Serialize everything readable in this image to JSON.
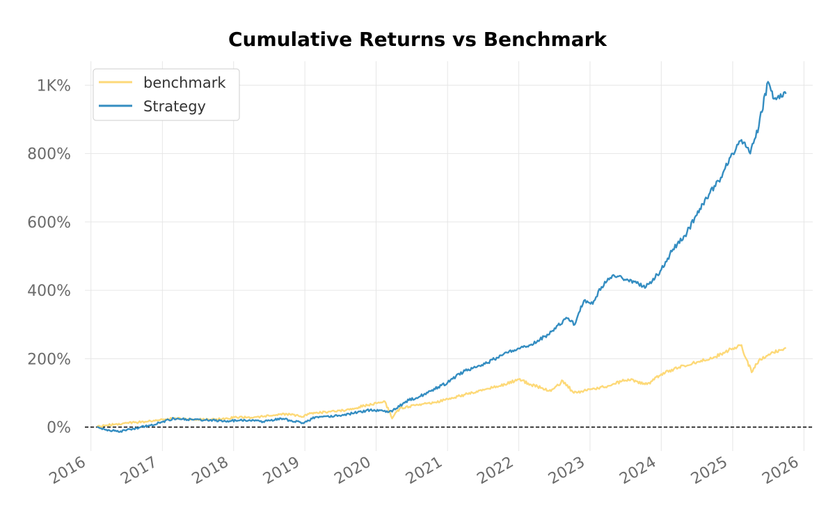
{
  "chart_data": {
    "type": "line",
    "title": "Cumulative Returns vs Benchmark",
    "xlabel": "",
    "ylabel": "",
    "x_range": [
      "2015-12-01",
      "2026-02-15"
    ],
    "ylim": [
      -70,
      1070
    ],
    "y_ticks": [
      {
        "value": 0,
        "label": "0%"
      },
      {
        "value": 200,
        "label": "200%"
      },
      {
        "value": 400,
        "label": "400%"
      },
      {
        "value": 600,
        "label": "600%"
      },
      {
        "value": 800,
        "label": "800%"
      },
      {
        "value": 1000,
        "label": "1K%"
      }
    ],
    "x_ticks": [
      {
        "value": "2016-01-01",
        "label": "2016"
      },
      {
        "value": "2017-01-01",
        "label": "2017"
      },
      {
        "value": "2018-01-01",
        "label": "2018"
      },
      {
        "value": "2019-01-01",
        "label": "2019"
      },
      {
        "value": "2020-01-01",
        "label": "2020"
      },
      {
        "value": "2021-01-01",
        "label": "2021"
      },
      {
        "value": "2022-01-01",
        "label": "2022"
      },
      {
        "value": "2023-01-01",
        "label": "2023"
      },
      {
        "value": "2024-01-01",
        "label": "2024"
      },
      {
        "value": "2025-01-01",
        "label": "2025"
      },
      {
        "value": "2026-01-01",
        "label": "2026"
      }
    ],
    "grid": true,
    "baseline": {
      "value": 0,
      "style": "dashed",
      "color": "#000000"
    },
    "legend": {
      "position": "top-left"
    },
    "series": [
      {
        "name": "benchmark",
        "color": "#fdd978",
        "points": [
          [
            "2016-02-01",
            0
          ],
          [
            "2016-03-15",
            5
          ],
          [
            "2016-05-01",
            8
          ],
          [
            "2016-07-01",
            12
          ],
          [
            "2016-09-01",
            14
          ],
          [
            "2016-11-01",
            18
          ],
          [
            "2017-01-01",
            22
          ],
          [
            "2017-03-01",
            26
          ],
          [
            "2017-06-01",
            23
          ],
          [
            "2017-09-01",
            22
          ],
          [
            "2017-12-01",
            25
          ],
          [
            "2018-02-01",
            30
          ],
          [
            "2018-04-01",
            28
          ],
          [
            "2018-07-01",
            33
          ],
          [
            "2018-10-01",
            38
          ],
          [
            "2018-12-20",
            30
          ],
          [
            "2019-02-01",
            40
          ],
          [
            "2019-05-01",
            45
          ],
          [
            "2019-08-01",
            50
          ],
          [
            "2019-11-01",
            62
          ],
          [
            "2020-02-15",
            75
          ],
          [
            "2020-03-23",
            25
          ],
          [
            "2020-05-01",
            55
          ],
          [
            "2020-08-01",
            65
          ],
          [
            "2020-11-01",
            72
          ],
          [
            "2021-01-01",
            82
          ],
          [
            "2021-04-01",
            95
          ],
          [
            "2021-07-01",
            110
          ],
          [
            "2021-10-01",
            120
          ],
          [
            "2022-01-01",
            140
          ],
          [
            "2022-03-01",
            125
          ],
          [
            "2022-06-15",
            105
          ],
          [
            "2022-08-15",
            135
          ],
          [
            "2022-10-10",
            100
          ],
          [
            "2023-01-01",
            110
          ],
          [
            "2023-04-01",
            120
          ],
          [
            "2023-07-15",
            140
          ],
          [
            "2023-10-20",
            125
          ],
          [
            "2024-01-01",
            155
          ],
          [
            "2024-04-01",
            175
          ],
          [
            "2024-07-01",
            190
          ],
          [
            "2024-10-01",
            205
          ],
          [
            "2025-01-01",
            230
          ],
          [
            "2025-02-15",
            240
          ],
          [
            "2025-04-08",
            160
          ],
          [
            "2025-05-15",
            195
          ],
          [
            "2025-07-15",
            215
          ],
          [
            "2025-10-01",
            232
          ]
        ]
      },
      {
        "name": "Strategy",
        "color": "#348dc1",
        "points": [
          [
            "2016-02-01",
            0
          ],
          [
            "2016-03-15",
            -8
          ],
          [
            "2016-06-01",
            -12
          ],
          [
            "2016-08-01",
            -5
          ],
          [
            "2016-11-01",
            5
          ],
          [
            "2017-01-01",
            15
          ],
          [
            "2017-03-01",
            25
          ],
          [
            "2017-06-01",
            22
          ],
          [
            "2017-09-01",
            20
          ],
          [
            "2017-12-01",
            18
          ],
          [
            "2018-03-01",
            20
          ],
          [
            "2018-06-01",
            16
          ],
          [
            "2018-09-01",
            25
          ],
          [
            "2018-12-20",
            12
          ],
          [
            "2019-03-01",
            30
          ],
          [
            "2019-06-01",
            32
          ],
          [
            "2019-09-01",
            40
          ],
          [
            "2019-12-01",
            50
          ],
          [
            "2020-03-23",
            45
          ],
          [
            "2020-06-01",
            75
          ],
          [
            "2020-09-01",
            95
          ],
          [
            "2021-01-01",
            130
          ],
          [
            "2021-04-01",
            165
          ],
          [
            "2021-07-01",
            180
          ],
          [
            "2021-10-01",
            210
          ],
          [
            "2022-01-01",
            230
          ],
          [
            "2022-03-01",
            240
          ],
          [
            "2022-06-01",
            270
          ],
          [
            "2022-09-01",
            320
          ],
          [
            "2022-10-15",
            300
          ],
          [
            "2022-12-01",
            370
          ],
          [
            "2023-01-15",
            360
          ],
          [
            "2023-03-01",
            410
          ],
          [
            "2023-05-01",
            445
          ],
          [
            "2023-07-15",
            430
          ],
          [
            "2023-10-15",
            410
          ],
          [
            "2024-01-01",
            460
          ],
          [
            "2024-03-01",
            520
          ],
          [
            "2024-05-01",
            560
          ],
          [
            "2024-07-01",
            620
          ],
          [
            "2024-09-01",
            680
          ],
          [
            "2024-11-01",
            730
          ],
          [
            "2025-01-01",
            800
          ],
          [
            "2025-02-15",
            840
          ],
          [
            "2025-04-01",
            800
          ],
          [
            "2025-05-15",
            880
          ],
          [
            "2025-07-01",
            1010
          ],
          [
            "2025-08-01",
            960
          ],
          [
            "2025-10-01",
            975
          ]
        ]
      }
    ]
  }
}
